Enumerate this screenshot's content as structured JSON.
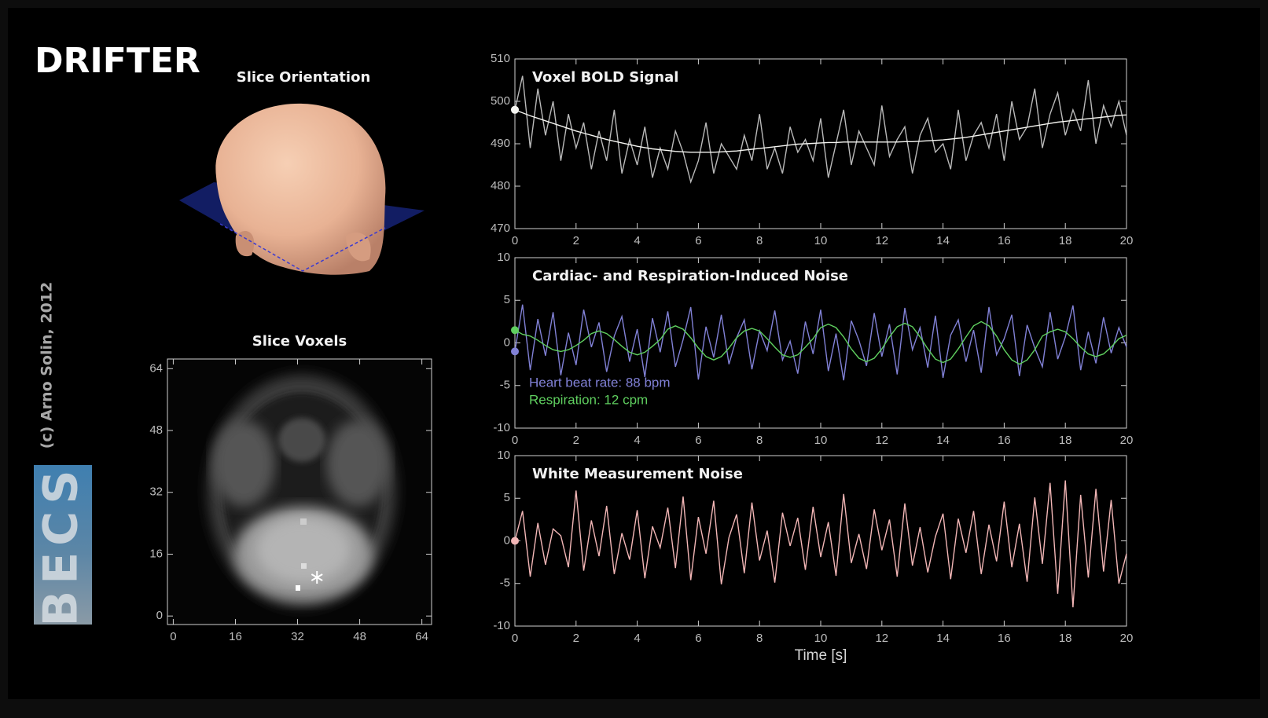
{
  "header": {
    "title": "DRIFTER"
  },
  "credit": "(c) Arno Solin, 2012",
  "logo": "BECS",
  "slice_orientation": {
    "title": "Slice Orientation"
  },
  "chart_data": [
    {
      "type": "image",
      "title": "Slice Voxels",
      "xlim": [
        -1.5,
        66.5
      ],
      "ylim": [
        -2.2,
        66.5
      ],
      "xticks": [
        0,
        16,
        32,
        48,
        64
      ],
      "yticks": [
        0,
        16,
        32,
        48,
        64
      ],
      "x": [
        37
      ],
      "values": [
        10
      ],
      "color": "#ffffff"
    },
    {
      "type": "line",
      "title": "Voxel BOLD Signal",
      "xlim": [
        0,
        20
      ],
      "xticks": [
        0,
        2,
        4,
        6,
        8,
        10,
        12,
        14,
        16,
        18,
        20
      ],
      "ylim": [
        470,
        510
      ],
      "yticks": [
        470,
        480,
        490,
        500,
        510
      ],
      "x": [
        0,
        0.25,
        0.5,
        0.75,
        1,
        1.25,
        1.5,
        1.75,
        2,
        2.25,
        2.5,
        2.75,
        3,
        3.25,
        3.5,
        3.75,
        4,
        4.25,
        4.5,
        4.75,
        5,
        5.25,
        5.5,
        5.75,
        6,
        6.25,
        6.5,
        6.75,
        7,
        7.25,
        7.5,
        7.75,
        8,
        8.25,
        8.5,
        8.75,
        9,
        9.25,
        9.5,
        9.75,
        10,
        10.25,
        10.5,
        10.75,
        11,
        11.25,
        11.5,
        11.75,
        12,
        12.25,
        12.5,
        12.75,
        13,
        13.25,
        13.5,
        13.75,
        14,
        14.25,
        14.5,
        14.75,
        15,
        15.25,
        15.5,
        15.75,
        16,
        16.25,
        16.5,
        16.75,
        17,
        17.25,
        17.5,
        17.75,
        18,
        18.25,
        18.5,
        18.75,
        19,
        19.25,
        19.5,
        19.75,
        20
      ],
      "series": [
        {
          "color": "#b9b9b9",
          "values": [
            498,
            506,
            489,
            503,
            492,
            500,
            486,
            497,
            489,
            495,
            484,
            493,
            486,
            498,
            483,
            491,
            485,
            494,
            482,
            489,
            484,
            493,
            488,
            481,
            486,
            495,
            483,
            490,
            487,
            484,
            492,
            486,
            497,
            484,
            489,
            483,
            494,
            488,
            491,
            486,
            496,
            482,
            490,
            498,
            485,
            493,
            489,
            485,
            499,
            487,
            491,
            494,
            483,
            492,
            496,
            488,
            490,
            484,
            498,
            486,
            492,
            495,
            489,
            497,
            486,
            500,
            491,
            494,
            503,
            489,
            497,
            502,
            492,
            498,
            493,
            505,
            490,
            499,
            494,
            500,
            492
          ]
        },
        {
          "color": "#f4f4f0",
          "values": [
            498,
            497.3,
            496.6,
            496.0,
            495.4,
            494.8,
            494.2,
            493.6,
            493.0,
            492.5,
            492.0,
            491.5,
            491.0,
            490.6,
            490.2,
            489.8,
            489.4,
            489.1,
            488.8,
            488.6,
            488.4,
            488.2,
            488.1,
            488.0,
            488.0,
            488.0,
            488.0,
            488.1,
            488.2,
            488.3,
            488.5,
            488.7,
            488.9,
            489.1,
            489.3,
            489.5,
            489.7,
            489.9,
            490.0,
            490.1,
            490.2,
            490.3,
            490.3,
            490.4,
            490.4,
            490.4,
            490.4,
            490.4,
            490.4,
            490.4,
            490.4,
            490.5,
            490.5,
            490.6,
            490.7,
            490.8,
            490.9,
            491.1,
            491.3,
            491.5,
            491.8,
            492.1,
            492.4,
            492.7,
            493.0,
            493.3,
            493.6,
            493.9,
            494.2,
            494.5,
            494.8,
            495.1,
            495.3,
            495.5,
            495.7,
            495.9,
            496.1,
            496.3,
            496.5,
            496.7,
            496.8
          ]
        }
      ]
    },
    {
      "type": "line",
      "title": "Cardiac- and Respiration-Induced Noise",
      "xlim": [
        0,
        20
      ],
      "xticks": [
        0,
        2,
        4,
        6,
        8,
        10,
        12,
        14,
        16,
        18,
        20
      ],
      "ylim": [
        -10,
        10
      ],
      "yticks": [
        -10,
        -5,
        0,
        5,
        10
      ],
      "x": [
        0,
        0.25,
        0.5,
        0.75,
        1,
        1.25,
        1.5,
        1.75,
        2,
        2.25,
        2.5,
        2.75,
        3,
        3.25,
        3.5,
        3.75,
        4,
        4.25,
        4.5,
        4.75,
        5,
        5.25,
        5.5,
        5.75,
        6,
        6.25,
        6.5,
        6.75,
        7,
        7.25,
        7.5,
        7.75,
        8,
        8.25,
        8.5,
        8.75,
        9,
        9.25,
        9.5,
        9.75,
        10,
        10.25,
        10.5,
        10.75,
        11,
        11.25,
        11.5,
        11.75,
        12,
        12.25,
        12.5,
        12.75,
        13,
        13.25,
        13.5,
        13.75,
        14,
        14.25,
        14.5,
        14.75,
        15,
        15.25,
        15.5,
        15.75,
        16,
        16.25,
        16.5,
        16.75,
        17,
        17.25,
        17.5,
        17.75,
        18,
        18.25,
        18.5,
        18.75,
        19,
        19.25,
        19.5,
        19.75,
        20
      ],
      "series": [
        {
          "name": "Heart beat rate: 88 bpm",
          "color": "#8181d6",
          "values": [
            -1,
            4.5,
            -3.2,
            2.8,
            -1.5,
            3.6,
            -3.8,
            1.2,
            -2.6,
            3.9,
            -0.5,
            2.4,
            -3.4,
            0.8,
            3.1,
            -2.2,
            1.6,
            -4,
            2.9,
            -1.1,
            3.7,
            -2.8,
            0.4,
            4.2,
            -4.3,
            1.9,
            -1.7,
            3.3,
            -2.5,
            0.6,
            2.7,
            -3.1,
            1.4,
            -0.9,
            3.8,
            -2,
            0.2,
            -3.6,
            2.5,
            -1.3,
            3.9,
            -3.3,
            1.1,
            -4.4,
            2.6,
            0.3,
            -2.7,
            3.5,
            -1.6,
            2.2,
            -3.7,
            4.1,
            -0.8,
            1.8,
            -2.9,
            3.2,
            -4.1,
            0.9,
            2.7,
            -2.2,
            1.5,
            -3.5,
            4.2,
            -1.4,
            0.5,
            3.3,
            -3.9,
            2.1,
            -0.6,
            -2.8,
            3.6,
            -1.9,
            0.7,
            4.4,
            -3.2,
            1.3,
            -2.4,
            3,
            -1.2,
            1.8,
            -0.5
          ]
        },
        {
          "name": "Respiration: 12 cpm",
          "color": "#5fcf5f",
          "values": [
            1.5,
            1.0,
            0.8,
            0.3,
            -0.3,
            -0.8,
            -1.0,
            -0.8,
            -0.3,
            0.3,
            1.1,
            1.4,
            1.1,
            0.4,
            -0.4,
            -1.1,
            -1.4,
            -1.1,
            -0.4,
            0.4,
            1.6,
            2.0,
            1.6,
            0.6,
            -0.6,
            -1.6,
            -2.0,
            -1.6,
            -0.6,
            0.6,
            1.4,
            1.7,
            1.4,
            0.5,
            -0.5,
            -1.4,
            -1.7,
            -1.4,
            -0.5,
            0.5,
            1.8,
            2.2,
            1.8,
            0.7,
            -0.7,
            -1.8,
            -2.2,
            -1.8,
            -0.7,
            0.7,
            1.9,
            2.3,
            1.9,
            0.7,
            -0.7,
            -1.9,
            -2.3,
            -1.9,
            -0.7,
            0.7,
            2.0,
            2.5,
            2.0,
            0.8,
            -0.8,
            -2.0,
            -2.5,
            -2.0,
            -0.8,
            0.8,
            1.3,
            1.6,
            1.3,
            0.5,
            -0.5,
            -1.3,
            -1.6,
            -1.3,
            -0.5,
            0.5,
            0.9
          ]
        }
      ]
    },
    {
      "type": "line",
      "title": "White Measurement Noise",
      "xlabel": "Time [s]",
      "xlim": [
        0,
        20
      ],
      "xticks": [
        0,
        2,
        4,
        6,
        8,
        10,
        12,
        14,
        16,
        18,
        20
      ],
      "ylim": [
        -10,
        10
      ],
      "yticks": [
        -10,
        -5,
        0,
        5,
        10
      ],
      "x": [
        0,
        0.25,
        0.5,
        0.75,
        1,
        1.25,
        1.5,
        1.75,
        2,
        2.25,
        2.5,
        2.75,
        3,
        3.25,
        3.5,
        3.75,
        4,
        4.25,
        4.5,
        4.75,
        5,
        5.25,
        5.5,
        5.75,
        6,
        6.25,
        6.5,
        6.75,
        7,
        7.25,
        7.5,
        7.75,
        8,
        8.25,
        8.5,
        8.75,
        9,
        9.25,
        9.5,
        9.75,
        10,
        10.25,
        10.5,
        10.75,
        11,
        11.25,
        11.5,
        11.75,
        12,
        12.25,
        12.5,
        12.75,
        13,
        13.25,
        13.5,
        13.75,
        14,
        14.25,
        14.5,
        14.75,
        15,
        15.25,
        15.5,
        15.75,
        16,
        16.25,
        16.5,
        16.75,
        17,
        17.25,
        17.5,
        17.75,
        18,
        18.25,
        18.5,
        18.75,
        19,
        19.25,
        19.5,
        19.75,
        20
      ],
      "series": [
        {
          "color": "#f2b6b6",
          "values": [
            0,
            3.5,
            -4.2,
            2.1,
            -2.8,
            1.4,
            0.6,
            -3.1,
            5.9,
            -3.5,
            2.4,
            -1.8,
            4.1,
            -3.9,
            0.9,
            -2.2,
            3.6,
            -4.4,
            1.7,
            -0.8,
            3.9,
            -3.2,
            5.2,
            -4.6,
            2.8,
            -1.5,
            4.7,
            -5.1,
            0.4,
            3.1,
            -3.8,
            4.5,
            -2.3,
            1.2,
            -4.9,
            3.3,
            -0.6,
            2.7,
            -3.4,
            4.0,
            -1.9,
            2.2,
            -4.1,
            5.5,
            -2.6,
            0.8,
            -3.3,
            3.7,
            -1.1,
            2.5,
            -4.2,
            4.4,
            -2.9,
            1.6,
            -3.7,
            0.5,
            3.2,
            -4.5,
            2.6,
            -1.4,
            3.5,
            -3.9,
            1.9,
            -2.4,
            4.6,
            -3.1,
            2.0,
            -4.8,
            5.1,
            -2.7,
            6.8,
            -6.2,
            7.1,
            -7.8,
            5.4,
            -4.3,
            6.1,
            -3.6,
            4.8,
            -5.0,
            -1.5
          ]
        }
      ]
    }
  ]
}
